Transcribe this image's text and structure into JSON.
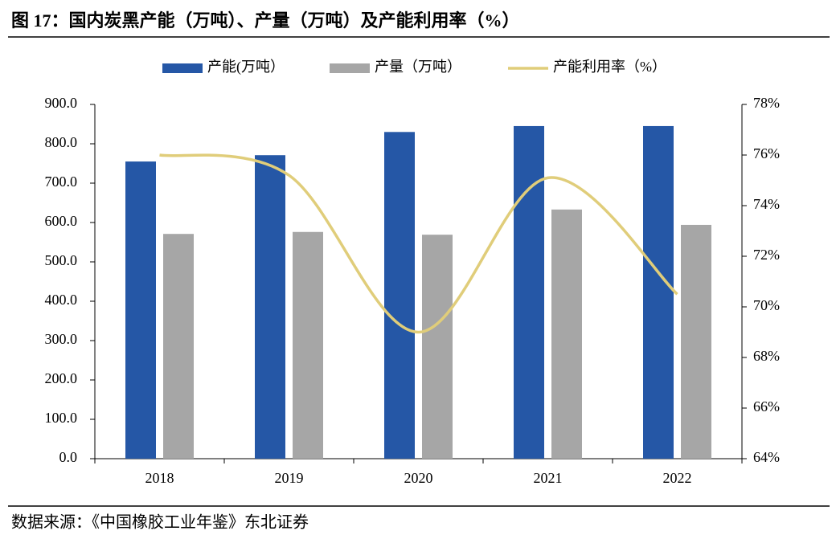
{
  "chart_data": {
    "type": "bar-line",
    "title": "图 17：国内炭黑产能（万吨）、产量（万吨）及产能利用率（%）",
    "source": "数据来源：《中国橡胶工业年鉴》东北证券",
    "categories": [
      "2018",
      "2019",
      "2020",
      "2021",
      "2022"
    ],
    "series": [
      {
        "name": "产能(万吨）",
        "type": "bar",
        "color": "#2557a6",
        "values": [
          755,
          771,
          830,
          845,
          845
        ]
      },
      {
        "name": "产量（万吨）",
        "type": "bar",
        "color": "#a6a6a6",
        "values": [
          571,
          576,
          569,
          633,
          594
        ]
      },
      {
        "name": "产能利用率（%）",
        "type": "line",
        "axis": "y2",
        "color": "#e0cd7a",
        "values": [
          76.0,
          75.2,
          69.0,
          75.1,
          70.5
        ]
      }
    ],
    "ylim": [
      0,
      900
    ],
    "yticks": [
      {
        "value": 0,
        "label": "0.0"
      },
      {
        "value": 100,
        "label": "100.0"
      },
      {
        "value": 200,
        "label": "200.0"
      },
      {
        "value": 300,
        "label": "300.0"
      },
      {
        "value": 400,
        "label": "400.0"
      },
      {
        "value": 500,
        "label": "500.0"
      },
      {
        "value": 600,
        "label": "600.0"
      },
      {
        "value": 700,
        "label": "700.0"
      },
      {
        "value": 800,
        "label": "800.0"
      },
      {
        "value": 900,
        "label": "900.0"
      }
    ],
    "y2lim": [
      64,
      78
    ],
    "y2ticks": [
      {
        "value": 64,
        "label": "64%"
      },
      {
        "value": 66,
        "label": "66%"
      },
      {
        "value": 68,
        "label": "68%"
      },
      {
        "value": 70,
        "label": "70%"
      },
      {
        "value": 72,
        "label": "72%"
      },
      {
        "value": 74,
        "label": "74%"
      },
      {
        "value": 76,
        "label": "76%"
      },
      {
        "value": 78,
        "label": "78%"
      }
    ],
    "legend": "top"
  }
}
